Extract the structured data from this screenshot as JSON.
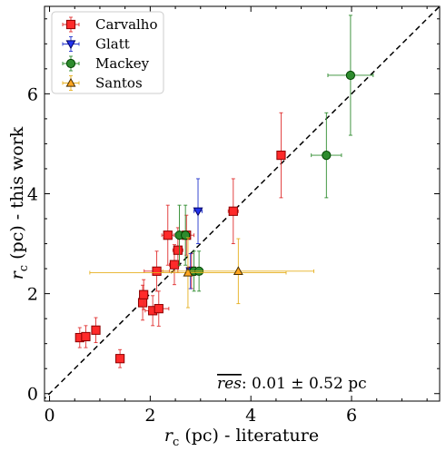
{
  "chart_data": {
    "type": "scatter",
    "xlabel_main": "r",
    "xlabel_sub": "c",
    "xlabel_rest": " (pc) - literature",
    "ylabel_main": "r",
    "ylabel_sub": "c",
    "ylabel_rest": " (pc) - this work",
    "xlim": [
      -0.1,
      7.75
    ],
    "ylim": [
      -0.15,
      7.75
    ],
    "xticks": [
      0,
      2,
      4,
      6
    ],
    "yticks": [
      0,
      2,
      4,
      6
    ],
    "grid": false,
    "legend_position": "top-left",
    "reference_line": "1:1 (dashed black)",
    "annotation": {
      "symbol": "res",
      "text": ": 0.01 ± 0.52 pc"
    },
    "series": [
      {
        "name": "Carvalho",
        "marker": "square",
        "color": "#ff2a2a",
        "edge_color": "#8b0000",
        "err_color": "#e03030",
        "points": [
          {
            "x": 0.6,
            "y": 1.12,
            "xerr": 0.05,
            "yerr": 0.2
          },
          {
            "x": 0.72,
            "y": 1.14,
            "xerr": 0.05,
            "yerr": 0.22
          },
          {
            "x": 0.92,
            "y": 1.27,
            "xerr": 0.05,
            "yerr": 0.25
          },
          {
            "x": 1.4,
            "y": 0.7,
            "xerr": 0.05,
            "yerr": 0.18
          },
          {
            "x": 1.85,
            "y": 1.82,
            "xerr": 0.06,
            "yerr": 0.35
          },
          {
            "x": 1.87,
            "y": 1.98,
            "xerr": 0.06,
            "yerr": 0.3
          },
          {
            "x": 2.05,
            "y": 1.66,
            "xerr": 0.15,
            "yerr": 0.3
          },
          {
            "x": 2.17,
            "y": 1.7,
            "xerr": 0.2,
            "yerr": 0.35
          },
          {
            "x": 2.13,
            "y": 2.45,
            "xerr": 0.25,
            "yerr": 0.4
          },
          {
            "x": 2.35,
            "y": 3.17,
            "xerr": 0.12,
            "yerr": 0.6
          },
          {
            "x": 2.48,
            "y": 2.58,
            "xerr": 0.1,
            "yerr": 0.4
          },
          {
            "x": 2.55,
            "y": 2.87,
            "xerr": 0.1,
            "yerr": 0.45
          },
          {
            "x": 2.72,
            "y": 3.17,
            "xerr": 0.15,
            "yerr": 0.4
          },
          {
            "x": 2.82,
            "y": 2.45,
            "xerr": 0.1,
            "yerr": 0.35
          },
          {
            "x": 3.65,
            "y": 3.65,
            "xerr": 0.1,
            "yerr": 0.65
          },
          {
            "x": 4.6,
            "y": 4.77,
            "xerr": 0.08,
            "yerr": 0.85
          }
        ]
      },
      {
        "name": "Glatt",
        "marker": "triangle-down",
        "color": "#2233ee",
        "edge_color": "#000066",
        "err_color": "#2233cc",
        "points": [
          {
            "x": 2.95,
            "y": 3.65,
            "xerr": 0.08,
            "yerr": 0.65
          },
          {
            "x": 2.8,
            "y": 2.45,
            "xerr": 0.08,
            "yerr": 0.35
          }
        ]
      },
      {
        "name": "Mackey",
        "marker": "circle",
        "color": "#2e8b2e",
        "edge_color": "#004400",
        "err_color": "#2e8b2e",
        "points": [
          {
            "x": 5.98,
            "y": 6.37,
            "xerr": 0.45,
            "yerr": 1.2
          },
          {
            "x": 5.5,
            "y": 4.77,
            "xerr": 0.3,
            "yerr": 0.85
          },
          {
            "x": 2.58,
            "y": 3.17,
            "xerr": 0.08,
            "yerr": 0.6
          },
          {
            "x": 2.7,
            "y": 3.17,
            "xerr": 0.08,
            "yerr": 0.6
          },
          {
            "x": 2.87,
            "y": 2.45,
            "xerr": 0.08,
            "yerr": 0.4
          },
          {
            "x": 2.97,
            "y": 2.45,
            "xerr": 0.08,
            "yerr": 0.4
          }
        ]
      },
      {
        "name": "Santos",
        "marker": "triangle-up",
        "color": "#ffa51f",
        "edge_color": "#4a3000",
        "err_color": "#e6b020",
        "points": [
          {
            "x": 2.75,
            "y": 2.42,
            "xerr": 1.95,
            "yerr": 0.7
          },
          {
            "x": 3.75,
            "y": 2.45,
            "xerr": 1.5,
            "yerr": 0.65
          }
        ]
      }
    ]
  }
}
